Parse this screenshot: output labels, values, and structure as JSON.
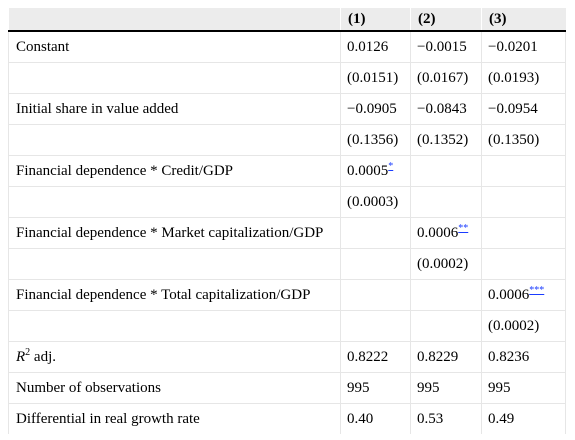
{
  "table": {
    "headers": [
      "",
      "(1)",
      "(2)",
      "(3)"
    ],
    "rows": [
      {
        "label": "Constant",
        "cells": [
          "0.0126",
          "−0.0015",
          "−0.0201"
        ]
      },
      {
        "label": "",
        "cells": [
          "(0.0151)",
          "(0.0167)",
          "(0.0193)"
        ]
      },
      {
        "label": "Initial share in value added",
        "cells": [
          "−0.0905",
          "−0.0843",
          "−0.0954"
        ]
      },
      {
        "label": "",
        "cells": [
          "(0.1356)",
          "(0.1352)",
          "(0.1350)"
        ]
      },
      {
        "label": "Financial dependence * Credit/GDP",
        "cells": [
          "0.0005",
          "",
          ""
        ],
        "sig": [
          "*",
          "",
          ""
        ]
      },
      {
        "label": "",
        "cells": [
          "(0.0003)",
          "",
          ""
        ]
      },
      {
        "label": "Financial dependence * Market capitalization/GDP",
        "cells": [
          "",
          "0.0006",
          ""
        ],
        "sig": [
          "",
          "**",
          ""
        ]
      },
      {
        "label": "",
        "cells": [
          "",
          "(0.0002)",
          ""
        ]
      },
      {
        "label": "Financial dependence * Total capitalization/GDP",
        "cells": [
          "",
          "",
          "0.0006"
        ],
        "sig": [
          "",
          "",
          "***"
        ]
      },
      {
        "label": "",
        "cells": [
          "",
          "",
          "(0.0002)"
        ]
      },
      {
        "label_italic": "R",
        "label_sup": "2",
        "label": " adj.",
        "cells": [
          "0.8222",
          "0.8229",
          "0.8236"
        ]
      },
      {
        "label": "Number of observations",
        "cells": [
          "995",
          "995",
          "995"
        ]
      },
      {
        "label": "Differential in real growth rate",
        "cells": [
          "0.40",
          "0.53",
          "0.49"
        ]
      }
    ]
  }
}
